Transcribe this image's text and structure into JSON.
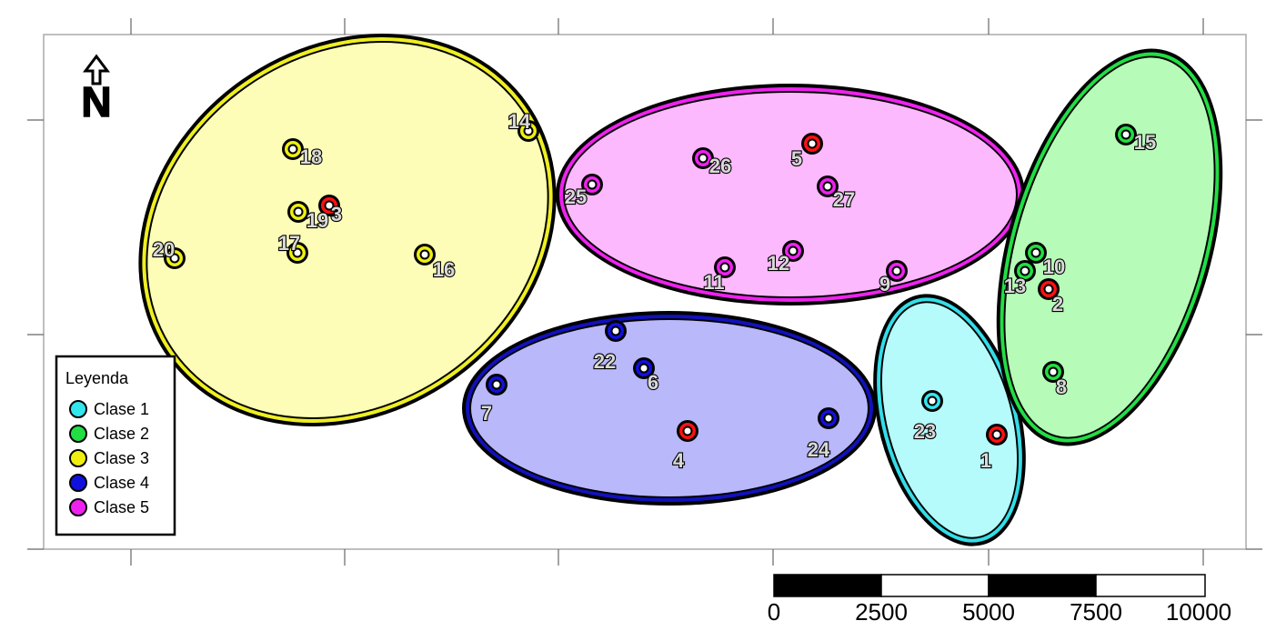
{
  "legend": {
    "title": "Leyenda",
    "items": [
      {
        "label": "Clase 1",
        "color": "#33e6ee"
      },
      {
        "label": "Clase 2",
        "color": "#22dd44"
      },
      {
        "label": "Clase 3",
        "color": "#eeee11"
      },
      {
        "label": "Clase 4",
        "color": "#1111dd"
      },
      {
        "label": "Clase 5",
        "color": "#ee22ee"
      }
    ]
  },
  "north_arrow": {
    "letter": "N"
  },
  "scale_bar": {
    "ticks": [
      "0",
      "2500",
      "5000",
      "7500",
      "10000"
    ]
  },
  "points": [
    {
      "id": "1",
      "class_color": "#ff1111"
    },
    {
      "id": "2",
      "class_color": "#ff1111"
    },
    {
      "id": "3",
      "class_color": "#ff1111"
    },
    {
      "id": "4",
      "class_color": "#ff1111"
    },
    {
      "id": "5",
      "class_color": "#ff1111"
    },
    {
      "id": "6",
      "class_color": "#1111dd"
    },
    {
      "id": "7",
      "class_color": "#1111dd"
    },
    {
      "id": "8",
      "class_color": "#22dd44"
    },
    {
      "id": "9",
      "class_color": "#ee22ee"
    },
    {
      "id": "10",
      "class_color": "#22dd44"
    },
    {
      "id": "11",
      "class_color": "#ee22ee"
    },
    {
      "id": "12",
      "class_color": "#ee22ee"
    },
    {
      "id": "13",
      "class_color": "#22dd44"
    },
    {
      "id": "14",
      "class_color": "#eeee11"
    },
    {
      "id": "15",
      "class_color": "#22dd44"
    },
    {
      "id": "16",
      "class_color": "#eeee11"
    },
    {
      "id": "17",
      "class_color": "#eeee11"
    },
    {
      "id": "18",
      "class_color": "#eeee11"
    },
    {
      "id": "19",
      "class_color": "#eeee11"
    },
    {
      "id": "20",
      "class_color": "#eeee11"
    },
    {
      "id": "22",
      "class_color": "#1111dd"
    },
    {
      "id": "23",
      "class_color": "#33e6ee"
    },
    {
      "id": "24",
      "class_color": "#1111dd"
    },
    {
      "id": "25",
      "class_color": "#ee22ee"
    },
    {
      "id": "26",
      "class_color": "#ee22ee"
    },
    {
      "id": "27",
      "class_color": "#ee22ee"
    }
  ]
}
